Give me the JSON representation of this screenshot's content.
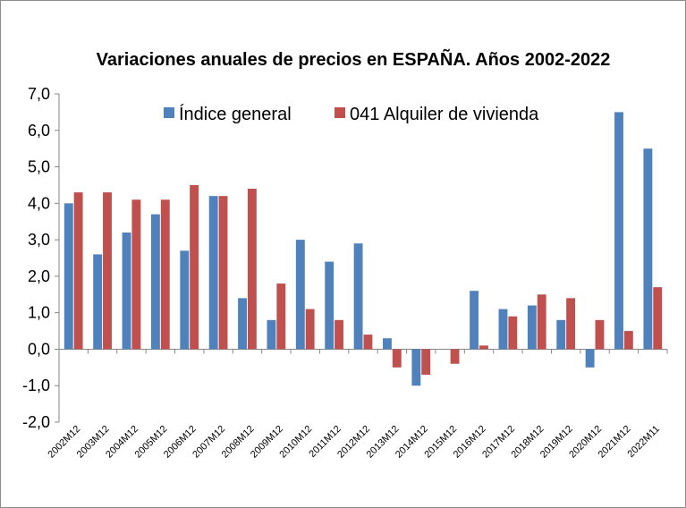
{
  "chart_data": {
    "type": "bar",
    "title": "Variaciones anuales de precios en ESPAÑA. Años 2002-2022",
    "xlabel": "",
    "ylabel": "",
    "ylim": [
      -2.0,
      7.0
    ],
    "yticks": [
      "-2,0",
      "-1,0",
      "0,0",
      "1,0",
      "2,0",
      "3,0",
      "4,0",
      "5,0",
      "6,0",
      "7,0"
    ],
    "categories": [
      "2002M12",
      "2003M12",
      "2004M12",
      "2005M12",
      "2006M12",
      "2007M12",
      "2008M12",
      "2009M12",
      "2010M12",
      "2011M12",
      "2012M12",
      "2013M12",
      "2014M12",
      "2015M12",
      "2016M12",
      "2017M12",
      "2018M12",
      "2019M12",
      "2020M12",
      "2021M12",
      "2022M11"
    ],
    "series": [
      {
        "name": "Índice general",
        "color": "#4f81bd",
        "values": [
          4.0,
          2.6,
          3.2,
          3.7,
          2.7,
          4.2,
          1.4,
          0.8,
          3.0,
          2.4,
          2.9,
          0.3,
          -1.0,
          0.0,
          1.6,
          1.1,
          1.2,
          0.8,
          -0.5,
          6.5,
          5.5
        ]
      },
      {
        "name": "041 Alquiler de vivienda",
        "color": "#c0504d",
        "values": [
          4.3,
          4.3,
          4.1,
          4.1,
          4.5,
          4.2,
          4.4,
          1.8,
          1.1,
          0.8,
          0.4,
          -0.5,
          -0.7,
          -0.4,
          0.1,
          0.9,
          1.5,
          1.4,
          0.8,
          0.5,
          1.7
        ]
      }
    ],
    "legend_position": "top"
  }
}
